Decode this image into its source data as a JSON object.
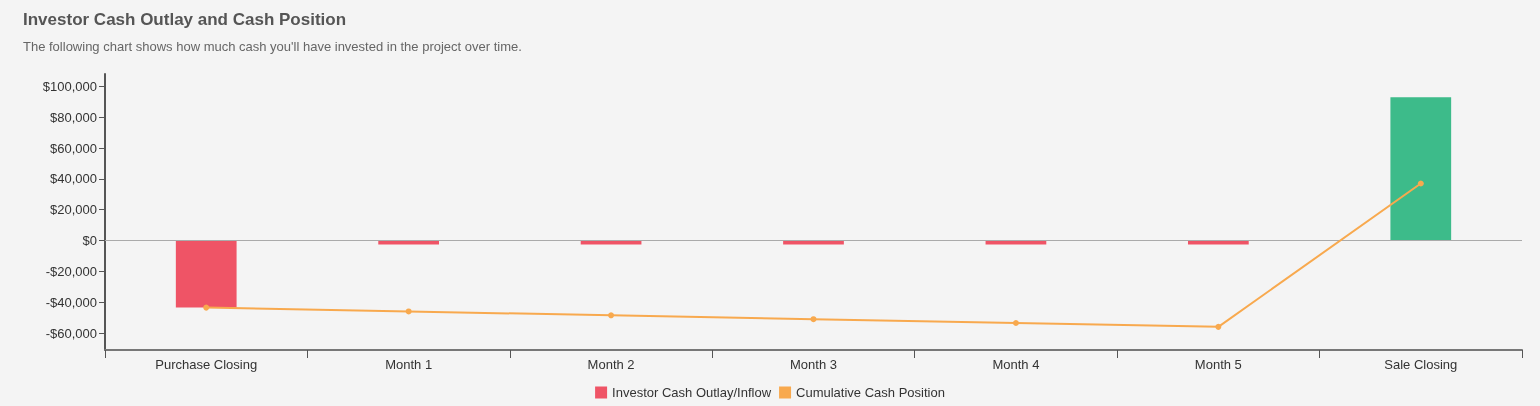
{
  "chart_data": {
    "type": "bar",
    "title": "Investor Cash Outlay and Cash Position",
    "subtitle": "The following chart shows how much cash you'll have invested in the project over time.",
    "categories": [
      "Purchase Closing",
      "Month 1",
      "Month 2",
      "Month 3",
      "Month 4",
      "Month 5",
      "Sale Closing"
    ],
    "series": [
      {
        "name": "Investor Cash Outlay/Inflow",
        "color": "#ef5466",
        "colors": [
          "#ef5466",
          "#ef5466",
          "#ef5466",
          "#ef5466",
          "#ef5466",
          "#ef5466",
          "#3dbb8a"
        ],
        "values": [
          -43500,
          -2500,
          -2500,
          -2500,
          -2500,
          -2500,
          93000
        ]
      },
      {
        "name": "Cumulative Cash Position",
        "type": "line",
        "color": "#f8a94e",
        "values": [
          -43500,
          -46000,
          -48500,
          -51000,
          -53500,
          -56000,
          37000
        ]
      }
    ],
    "ylim": [
      -71000,
      108000
    ],
    "yticks": [
      {
        "value": -60000,
        "label": "-$60,000"
      },
      {
        "value": -40000,
        "label": "-$40,000"
      },
      {
        "value": -20000,
        "label": "-$20,000"
      },
      {
        "value": 0,
        "label": "$0"
      },
      {
        "value": 20000,
        "label": "$20,000"
      },
      {
        "value": 40000,
        "label": "$40,000"
      },
      {
        "value": 60000,
        "label": "$60,000"
      },
      {
        "value": 80000,
        "label": "$80,000"
      },
      {
        "value": 100000,
        "label": "$100,000"
      }
    ],
    "ref_lines": [
      {
        "axis": "y",
        "value": 0,
        "color": "#aaaaaa"
      }
    ],
    "grid": false,
    "legend": "bottom",
    "marker": "circle",
    "line_style": "solid"
  }
}
